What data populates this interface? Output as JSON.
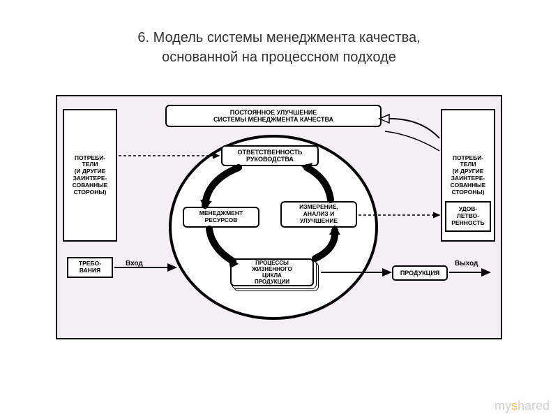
{
  "title": {
    "line1": "6. Модель системы менеджмента качества,",
    "line2": "основанной на процессном подходе"
  },
  "diagram": {
    "bg": "#f5eef5",
    "border": "#000000",
    "left_tall": "ПОТРЕБИ-\nТЕЛИ\n(И ДРУГИЕ\nЗАИНТЕРЕ-\nСОВАННЫЕ\nСТОРОНЫ)",
    "right_tall": "ПОТРЕБИ-\nТЕЛИ\n(И ДРУГИЕ\nЗАИНТЕРЕ-\nСОВАННЫЕ\nСТОРОНЫ)",
    "top_banner": "ПОСТОЯННОЕ УЛУЧШЕНИЕ\nСИСТЕМЫ МЕНЕДЖМЕНТА КАЧЕСТВА",
    "req": "Требо-\nвания",
    "sat": "Удов-\nлетво-\nренность",
    "circle_boxes": {
      "b1": "ОТВЕТСТВЕННОСТЬ\nРУКОВОДСТВА",
      "b2": "МЕНЕДЖМЕНТ\nРЕСУРСОВ",
      "b3": "ИЗМЕРЕНИЕ,\nАНАЛИЗ И\nУЛУЧШЕНИЕ",
      "b4": "ПРОЦЕССЫ\nЖИЗНЕННОГО\nЦИКЛА\nПРОДУКЦИИ"
    },
    "product": "Продукция",
    "label_in": "Вход",
    "label_out": "Выход"
  },
  "watermark": {
    "text": "myshared",
    "accent_index": 2
  },
  "colors": {
    "title": "#333333",
    "box_bg": "#ffffff",
    "box_border": "#000000",
    "arrow": "#000000"
  }
}
